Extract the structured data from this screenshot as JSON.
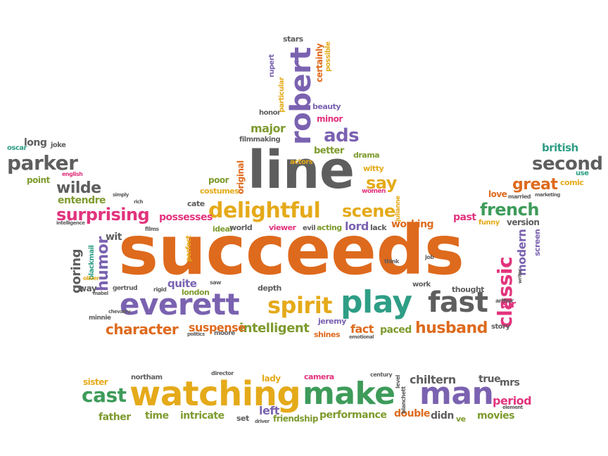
{
  "colors": {
    "orange": "#de6a1d",
    "purple": "#7a62b0",
    "gray": "#5e5e5e",
    "green": "#3e9b5a",
    "gold": "#e5aa1a",
    "pink": "#e2337d",
    "teal": "#2e9e86",
    "olive": "#7e9b2e"
  },
  "words": [
    {
      "text": "succeeds",
      "color": "orange"
    },
    {
      "text": "line",
      "color": "gray"
    },
    {
      "text": "robert",
      "color": "purple"
    },
    {
      "text": "everett",
      "color": "purple"
    },
    {
      "text": "play",
      "color": "teal"
    },
    {
      "text": "fast",
      "color": "gray"
    },
    {
      "text": "spirit",
      "color": "gold"
    },
    {
      "text": "delightful",
      "color": "gold"
    },
    {
      "text": "watching",
      "color": "gold"
    },
    {
      "text": "make",
      "color": "green"
    },
    {
      "text": "man",
      "color": "purple"
    },
    {
      "text": "cast",
      "color": "green"
    },
    {
      "text": "surprising",
      "color": "pink"
    },
    {
      "text": "parker",
      "color": "gray"
    },
    {
      "text": "wilde",
      "color": "gray"
    },
    {
      "text": "second",
      "color": "gray"
    },
    {
      "text": "great",
      "color": "orange"
    },
    {
      "text": "french",
      "color": "green"
    },
    {
      "text": "classic",
      "color": "pink"
    },
    {
      "text": "scene",
      "color": "gold"
    },
    {
      "text": "say",
      "color": "gold"
    },
    {
      "text": "ads",
      "color": "purple"
    },
    {
      "text": "character",
      "color": "orange"
    },
    {
      "text": "intelligent",
      "color": "olive"
    },
    {
      "text": "husband",
      "color": "orange"
    },
    {
      "text": "humor",
      "color": "purple"
    },
    {
      "text": "goring",
      "color": "gray"
    },
    {
      "text": "major",
      "color": "olive"
    },
    {
      "text": "possesses",
      "color": "pink"
    },
    {
      "text": "suspense",
      "color": "orange"
    },
    {
      "text": "british",
      "color": "teal"
    },
    {
      "text": "working",
      "color": "orange"
    },
    {
      "text": "lord",
      "color": "purple"
    },
    {
      "text": "quite",
      "color": "purple"
    },
    {
      "text": "past",
      "color": "pink"
    },
    {
      "text": "fact",
      "color": "orange"
    },
    {
      "text": "paced",
      "color": "olive"
    },
    {
      "text": "modern",
      "color": "purple"
    },
    {
      "text": "version",
      "color": "gray"
    },
    {
      "text": "sir",
      "color": "pink"
    },
    {
      "text": "chiltern",
      "color": "gray"
    },
    {
      "text": "period",
      "color": "pink"
    },
    {
      "text": "true",
      "color": "gray"
    },
    {
      "text": "mrs",
      "color": "gray"
    },
    {
      "text": "movies",
      "color": "olive"
    },
    {
      "text": "double",
      "color": "orange"
    },
    {
      "text": "performance",
      "color": "olive"
    },
    {
      "text": "friendship",
      "color": "olive"
    },
    {
      "text": "intricate",
      "color": "olive"
    },
    {
      "text": "time",
      "color": "olive"
    },
    {
      "text": "father",
      "color": "olive"
    },
    {
      "text": "left",
      "color": "purple"
    },
    {
      "text": "lady",
      "color": "gold"
    },
    {
      "text": "camera",
      "color": "pink"
    },
    {
      "text": "sister",
      "color": "gold"
    },
    {
      "text": "didn",
      "color": "gray"
    },
    {
      "text": "ve",
      "color": "olive"
    },
    {
      "text": "set",
      "color": "gray"
    },
    {
      "text": "northam",
      "color": "gray"
    },
    {
      "text": "director",
      "color": "gray"
    },
    {
      "text": "century",
      "color": "gray"
    },
    {
      "text": "level",
      "color": "gray"
    },
    {
      "text": "blanchett",
      "color": "gray"
    },
    {
      "text": "element",
      "color": "gray"
    },
    {
      "text": "driver",
      "color": "gray"
    },
    {
      "text": "long",
      "color": "gray"
    },
    {
      "text": "joke",
      "color": "gray"
    },
    {
      "text": "oscar",
      "color": "teal"
    },
    {
      "text": "english",
      "color": "pink"
    },
    {
      "text": "point",
      "color": "olive"
    },
    {
      "text": "entendre",
      "color": "olive"
    },
    {
      "text": "simply",
      "color": "gray"
    },
    {
      "text": "rich",
      "color": "gray"
    },
    {
      "text": "intelligence",
      "color": "gray"
    },
    {
      "text": "films",
      "color": "gray"
    },
    {
      "text": "cate",
      "color": "gray"
    },
    {
      "text": "wit",
      "color": "gray"
    },
    {
      "text": "blackmail",
      "color": "teal"
    },
    {
      "text": "way",
      "color": "gray"
    },
    {
      "text": "oliver",
      "color": "gold"
    },
    {
      "text": "mabel",
      "color": "gray"
    },
    {
      "text": "gertrud",
      "color": "gray"
    },
    {
      "text": "chevaley",
      "color": "gray"
    },
    {
      "text": "minnie",
      "color": "gray"
    },
    {
      "text": "rigid",
      "color": "gray"
    },
    {
      "text": "london",
      "color": "olive"
    },
    {
      "text": "perfect",
      "color": "gold"
    },
    {
      "text": "saw",
      "color": "gray"
    },
    {
      "text": "politics",
      "color": "gray"
    },
    {
      "text": "moore",
      "color": "gray"
    },
    {
      "text": "depth",
      "color": "gray"
    },
    {
      "text": "jeremy",
      "color": "purple"
    },
    {
      "text": "shines",
      "color": "orange"
    },
    {
      "text": "emotional",
      "color": "gray"
    },
    {
      "text": "ideal",
      "color": "olive"
    },
    {
      "text": "world",
      "color": "gray"
    },
    {
      "text": "viewer",
      "color": "pink"
    },
    {
      "text": "evil",
      "color": "gray"
    },
    {
      "text": "acting",
      "color": "olive"
    },
    {
      "text": "lack",
      "color": "gray"
    },
    {
      "text": "julianne",
      "color": "gold"
    },
    {
      "text": "women",
      "color": "pink"
    },
    {
      "text": "witty",
      "color": "gold"
    },
    {
      "text": "drama",
      "color": "olive"
    },
    {
      "text": "better",
      "color": "olive"
    },
    {
      "text": "actors",
      "color": "gold"
    },
    {
      "text": "original",
      "color": "orange"
    },
    {
      "text": "costumes",
      "color": "gold"
    },
    {
      "text": "poor",
      "color": "olive"
    },
    {
      "text": "filmmaking",
      "color": "gray"
    },
    {
      "text": "honor",
      "color": "gray"
    },
    {
      "text": "beauty",
      "color": "purple"
    },
    {
      "text": "minor",
      "color": "pink"
    },
    {
      "text": "stars",
      "color": "gray"
    },
    {
      "text": "rupert",
      "color": "purple"
    },
    {
      "text": "particular",
      "color": "gold"
    },
    {
      "text": "certainly",
      "color": "orange"
    },
    {
      "text": "possible",
      "color": "gold"
    },
    {
      "text": "love",
      "color": "orange"
    },
    {
      "text": "married",
      "color": "gray"
    },
    {
      "text": "comic",
      "color": "gold"
    },
    {
      "text": "marketing",
      "color": "gray"
    },
    {
      "text": "use",
      "color": "teal"
    },
    {
      "text": "funny",
      "color": "gold"
    },
    {
      "text": "screen",
      "color": "purple"
    },
    {
      "text": "writer",
      "color": "gray"
    },
    {
      "text": "arthur",
      "color": "gray"
    },
    {
      "text": "thought",
      "color": "gray"
    },
    {
      "text": "story",
      "color": "gray"
    },
    {
      "text": "work",
      "color": "gray"
    },
    {
      "text": "think",
      "color": "gray"
    },
    {
      "text": "job",
      "color": "gray"
    }
  ]
}
